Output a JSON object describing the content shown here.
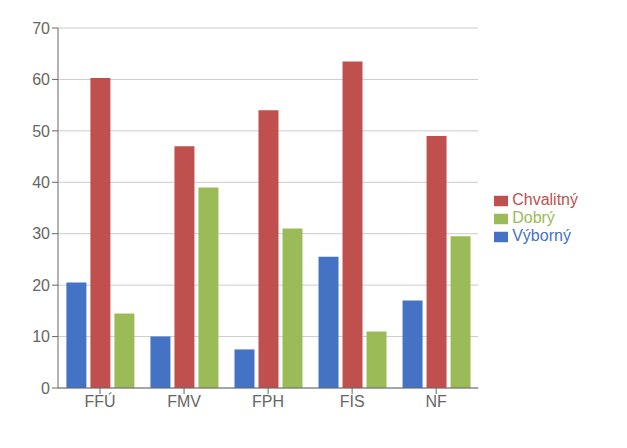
{
  "chart_data": {
    "type": "bar",
    "categories": [
      "FFÚ",
      "FMV",
      "FPH",
      "FIS",
      "NF"
    ],
    "series": [
      {
        "name": "Výborný",
        "color": "#4472C4",
        "values": [
          20.5,
          10.0,
          7.5,
          25.5,
          17.0
        ]
      },
      {
        "name": "Chvalitný",
        "color": "#C0504D",
        "values": [
          60.3,
          47.0,
          54.0,
          63.5,
          49.0
        ]
      },
      {
        "name": "Dobrý",
        "color": "#9BBB59",
        "values": [
          14.5,
          39.0,
          31.0,
          11.0,
          29.5
        ]
      }
    ],
    "ylim": [
      0,
      70
    ],
    "yticks": [
      0,
      10,
      20,
      30,
      40,
      50,
      60,
      70
    ],
    "grid": true,
    "legend": "right"
  }
}
